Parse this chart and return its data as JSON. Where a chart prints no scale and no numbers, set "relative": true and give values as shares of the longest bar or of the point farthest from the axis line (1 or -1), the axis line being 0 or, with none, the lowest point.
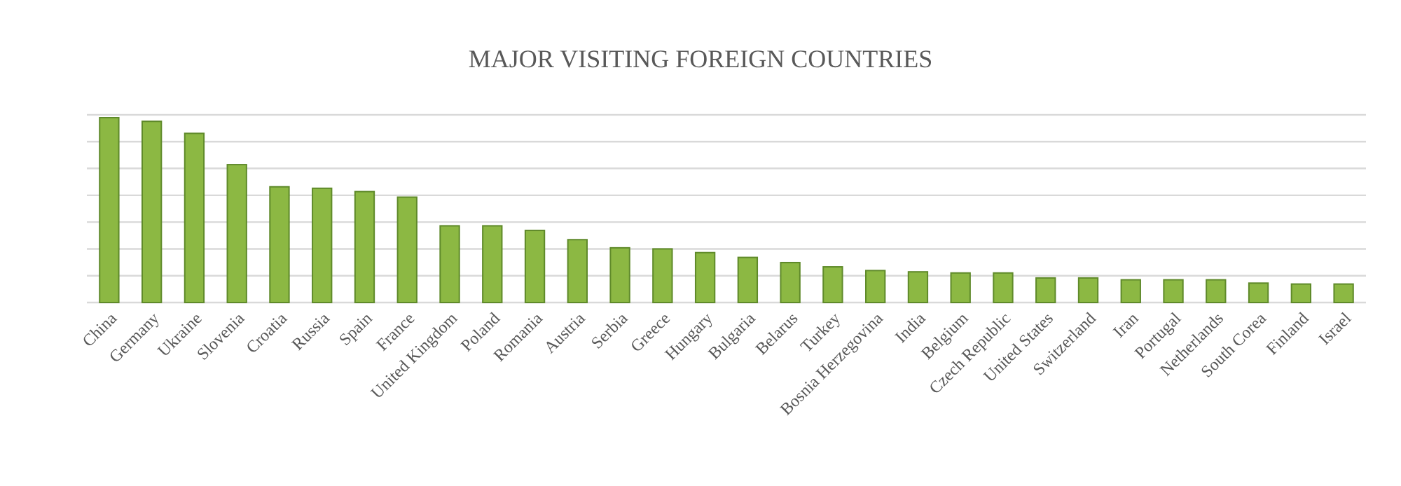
{
  "chart_data": {
    "type": "bar",
    "title": "MAJOR VISITING FOREIGN COUNTRIES",
    "relative": true,
    "grid": true,
    "color": "#8cb843",
    "categories": [
      "China",
      "Germany",
      "Ukraine",
      "Slovenia",
      "Croatia",
      "Russia",
      "Spain",
      "France",
      "United Kingdom",
      "Poland",
      "Romania",
      "Austria",
      "Serbia",
      "Greece",
      "Hungary",
      "Bulgaria",
      "Belarus",
      "Turkey",
      "Bosnia Herzegovina",
      "India",
      "Belgium",
      "Czech Republic",
      "United States",
      "Switzerland",
      "Iran",
      "Portugal",
      "Netherlands",
      "South Corea",
      "Finland",
      "Israel"
    ],
    "values": [
      1,
      0.98,
      0.915,
      0.746,
      0.626,
      0.618,
      0.6,
      0.57,
      0.415,
      0.415,
      0.39,
      0.34,
      0.296,
      0.29,
      0.27,
      0.244,
      0.216,
      0.193,
      0.173,
      0.166,
      0.16,
      0.16,
      0.133,
      0.133,
      0.123,
      0.123,
      0.123,
      0.105,
      0.1,
      0.1
    ]
  }
}
